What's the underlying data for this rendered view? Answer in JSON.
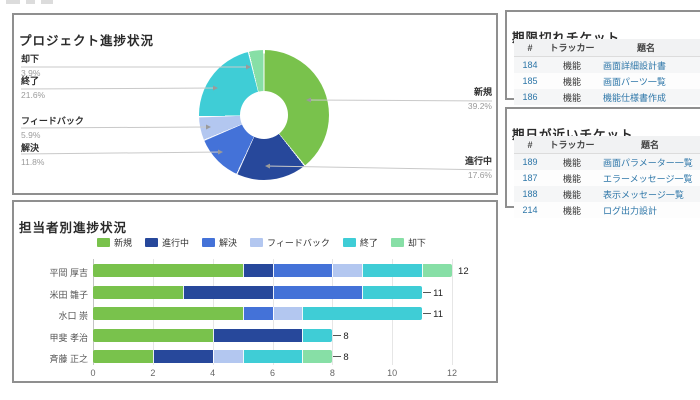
{
  "panels": {
    "project_status": {
      "title": "プロジェクト進捗状況"
    },
    "assignee_status": {
      "title": "担当者別進捗状況"
    },
    "overdue_tickets": {
      "title": "期限切れチケット",
      "columns": [
        "#",
        "トラッカー",
        "題名"
      ],
      "rows": [
        {
          "id": "184",
          "tracker": "機能",
          "subject": "画面詳細設計書"
        },
        {
          "id": "185",
          "tracker": "機能",
          "subject": "画面パーツ一覧"
        },
        {
          "id": "186",
          "tracker": "機能",
          "subject": "機能仕様書作成"
        }
      ],
      "clipped_extra_column": true
    },
    "upcoming_tickets": {
      "title": "期日が近いチケット",
      "columns": [
        "#",
        "トラッカー",
        "題名"
      ],
      "rows": [
        {
          "id": "189",
          "tracker": "機能",
          "subject": "画面パラメーター一覧"
        },
        {
          "id": "187",
          "tracker": "機能",
          "subject": "エラーメッセージ一覧"
        },
        {
          "id": "188",
          "tracker": "機能",
          "subject": "表示メッセージ一覧"
        },
        {
          "id": "214",
          "tracker": "機能",
          "subject": "ログ出力設計"
        }
      ],
      "clipped_extra_column": false
    }
  },
  "colors": {
    "link": "#2d76a8",
    "panel_border": "#8f8f8f",
    "status_new": "#79c24c",
    "status_in_progress": "#27489b",
    "status_resolved": "#4472d8",
    "status_feedback": "#b3c7f0",
    "status_closed": "#3fcdd6",
    "status_rejected": "#87dfa6"
  },
  "chart_data": [
    {
      "type": "pie",
      "title": "プロジェクト進捗状況",
      "labels": [
        "新規",
        "進行中",
        "解決",
        "フィードバック",
        "終了",
        "却下"
      ],
      "values": [
        39.2,
        17.6,
        11.8,
        5.9,
        21.6,
        3.9
      ],
      "colors": [
        "#79c24c",
        "#27489b",
        "#4472d8",
        "#b3c7f0",
        "#3fcdd6",
        "#87dfa6"
      ],
      "unit": "%",
      "donut_hole": 0.37,
      "start_angle_deg": 0,
      "direction": "clockwise"
    },
    {
      "type": "bar",
      "orientation": "horizontal",
      "stacked": true,
      "title": "担当者別進捗状況",
      "categories": [
        "平岡 厚吉",
        "米田 雛子",
        "水口 崇",
        "甲斐 孝治",
        "斉藤 正之"
      ],
      "series": [
        {
          "name": "新規",
          "values": [
            5,
            3,
            5,
            4,
            2
          ]
        },
        {
          "name": "進行中",
          "values": [
            1,
            3,
            0,
            3,
            2
          ]
        },
        {
          "name": "解決",
          "values": [
            2,
            3,
            1,
            0,
            0
          ]
        },
        {
          "name": "フィードバック",
          "values": [
            1,
            0,
            1,
            0,
            1
          ]
        },
        {
          "name": "終了",
          "values": [
            2,
            2,
            4,
            1,
            2
          ]
        },
        {
          "name": "却下",
          "values": [
            1,
            0,
            0,
            0,
            1
          ]
        }
      ],
      "totals": [
        12,
        11,
        11,
        8,
        8
      ],
      "xlim": [
        0,
        12
      ],
      "x_ticks": [
        0,
        2,
        4,
        6,
        8,
        10,
        12
      ],
      "grid": true,
      "legend_position": "top"
    }
  ]
}
